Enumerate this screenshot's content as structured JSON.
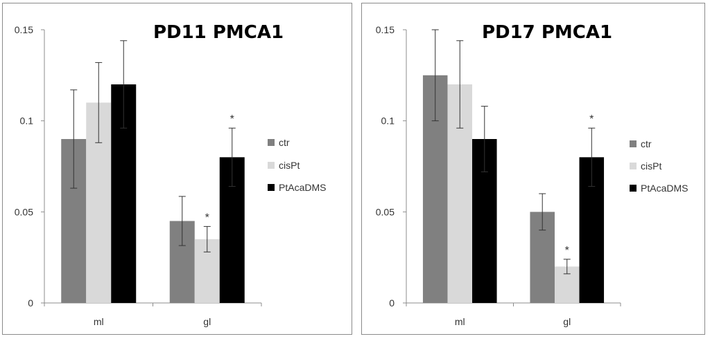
{
  "chart_data": [
    {
      "type": "bar",
      "title": "PD11 PMCA1",
      "categories": [
        "ml",
        "gl"
      ],
      "ylim": [
        0,
        0.15
      ],
      "ytick_labels": [
        "0",
        "0.05",
        "0.1",
        "0.15"
      ],
      "yticks": [
        0,
        0.05,
        0.1,
        0.15
      ],
      "series": [
        {
          "name": "ctr",
          "color": "#808080",
          "values": [
            0.09,
            0.045
          ],
          "errors": [
            0.027,
            0.0135
          ],
          "significant": [
            false,
            false
          ]
        },
        {
          "name": "cisPt",
          "color": "#d9d9d9",
          "values": [
            0.11,
            0.035
          ],
          "errors": [
            0.022,
            0.007
          ],
          "significant": [
            false,
            true
          ]
        },
        {
          "name": "PtAcaDMS",
          "color": "#000000",
          "values": [
            0.12,
            0.08
          ],
          "errors": [
            0.024,
            0.016
          ],
          "significant": [
            false,
            true
          ]
        }
      ],
      "significance_marker": "*",
      "legend_position": "right"
    },
    {
      "type": "bar",
      "title": "PD17 PMCA1",
      "categories": [
        "ml",
        "gl"
      ],
      "ylim": [
        0,
        0.15
      ],
      "ytick_labels": [
        "0",
        "0.05",
        "0.1",
        "0.15"
      ],
      "yticks": [
        0,
        0.05,
        0.1,
        0.15
      ],
      "series": [
        {
          "name": "ctr",
          "color": "#808080",
          "values": [
            0.125,
            0.05
          ],
          "errors": [
            0.025,
            0.01
          ],
          "significant": [
            false,
            false
          ]
        },
        {
          "name": "cisPt",
          "color": "#d9d9d9",
          "values": [
            0.12,
            0.02
          ],
          "errors": [
            0.024,
            0.004
          ],
          "significant": [
            false,
            true
          ]
        },
        {
          "name": "PtAcaDMS",
          "color": "#000000",
          "values": [
            0.09,
            0.08
          ],
          "errors": [
            0.018,
            0.016
          ],
          "significant": [
            false,
            true
          ]
        }
      ],
      "significance_marker": "*",
      "legend_position": "right"
    }
  ]
}
